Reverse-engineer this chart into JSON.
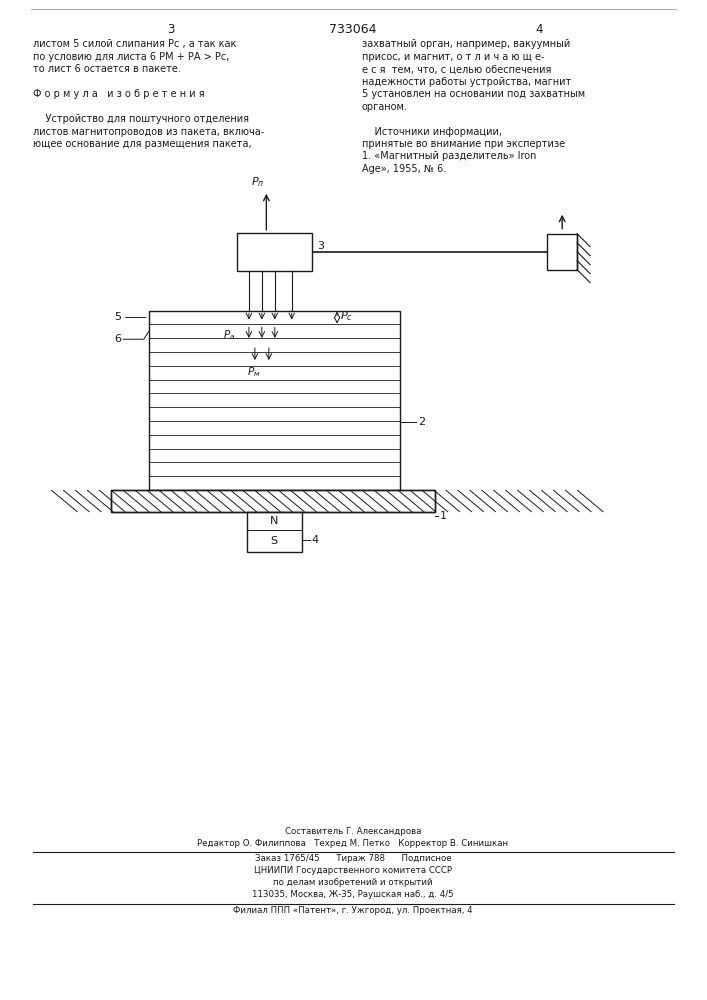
{
  "bg_color": "#ffffff",
  "text_color": "#1a1a1a",
  "page_width": 7.07,
  "page_height": 10.0,
  "header_number": "733064",
  "col1_header": "3",
  "col2_header": "4",
  "col1_text_lines": [
    "листом 5 силой слипания Pс , а так как",
    "по условию для листа 6 PМ + PА > Pс,",
    "то лист 6 остается в пакете.",
    "",
    "Ф о р м у л а   и з о б р е т е н и я",
    "",
    "    Устройство для поштучного отделения",
    "листов магнитопроводов из пакета, включа-",
    "ющее основание для размещения пакета,"
  ],
  "col2_text_lines": [
    "захватный орган, например, вакуумный",
    "присос, и магнит, о т л и ч а ю щ е-",
    "е с я  тем, что, с целью обеспечения",
    "надежности работы устройства, магнит",
    "5 установлен на основании под захватным",
    "органом.",
    "",
    "    Источники информации,",
    "принятые во внимание при экспертизе",
    "1. «Mагнитный разделитель» Iron",
    "Age», 1955, № 6."
  ],
  "footer_lines": [
    "Составитель Г. Александрова",
    "Редактор О. Филиппова   Техред М. Петко   Корректор В. Синишкан",
    "Заказ 1765/45      Тираж 788      Подписное",
    "ЦНИИПИ Государственного комитета СССР",
    "по делам изобретений и открытий",
    "113035, Москва, Ж-35, Раушская наб., д. 4/5",
    "Филиал ППП «Патент», г. Ужгород, ул. Проектная, 4"
  ]
}
